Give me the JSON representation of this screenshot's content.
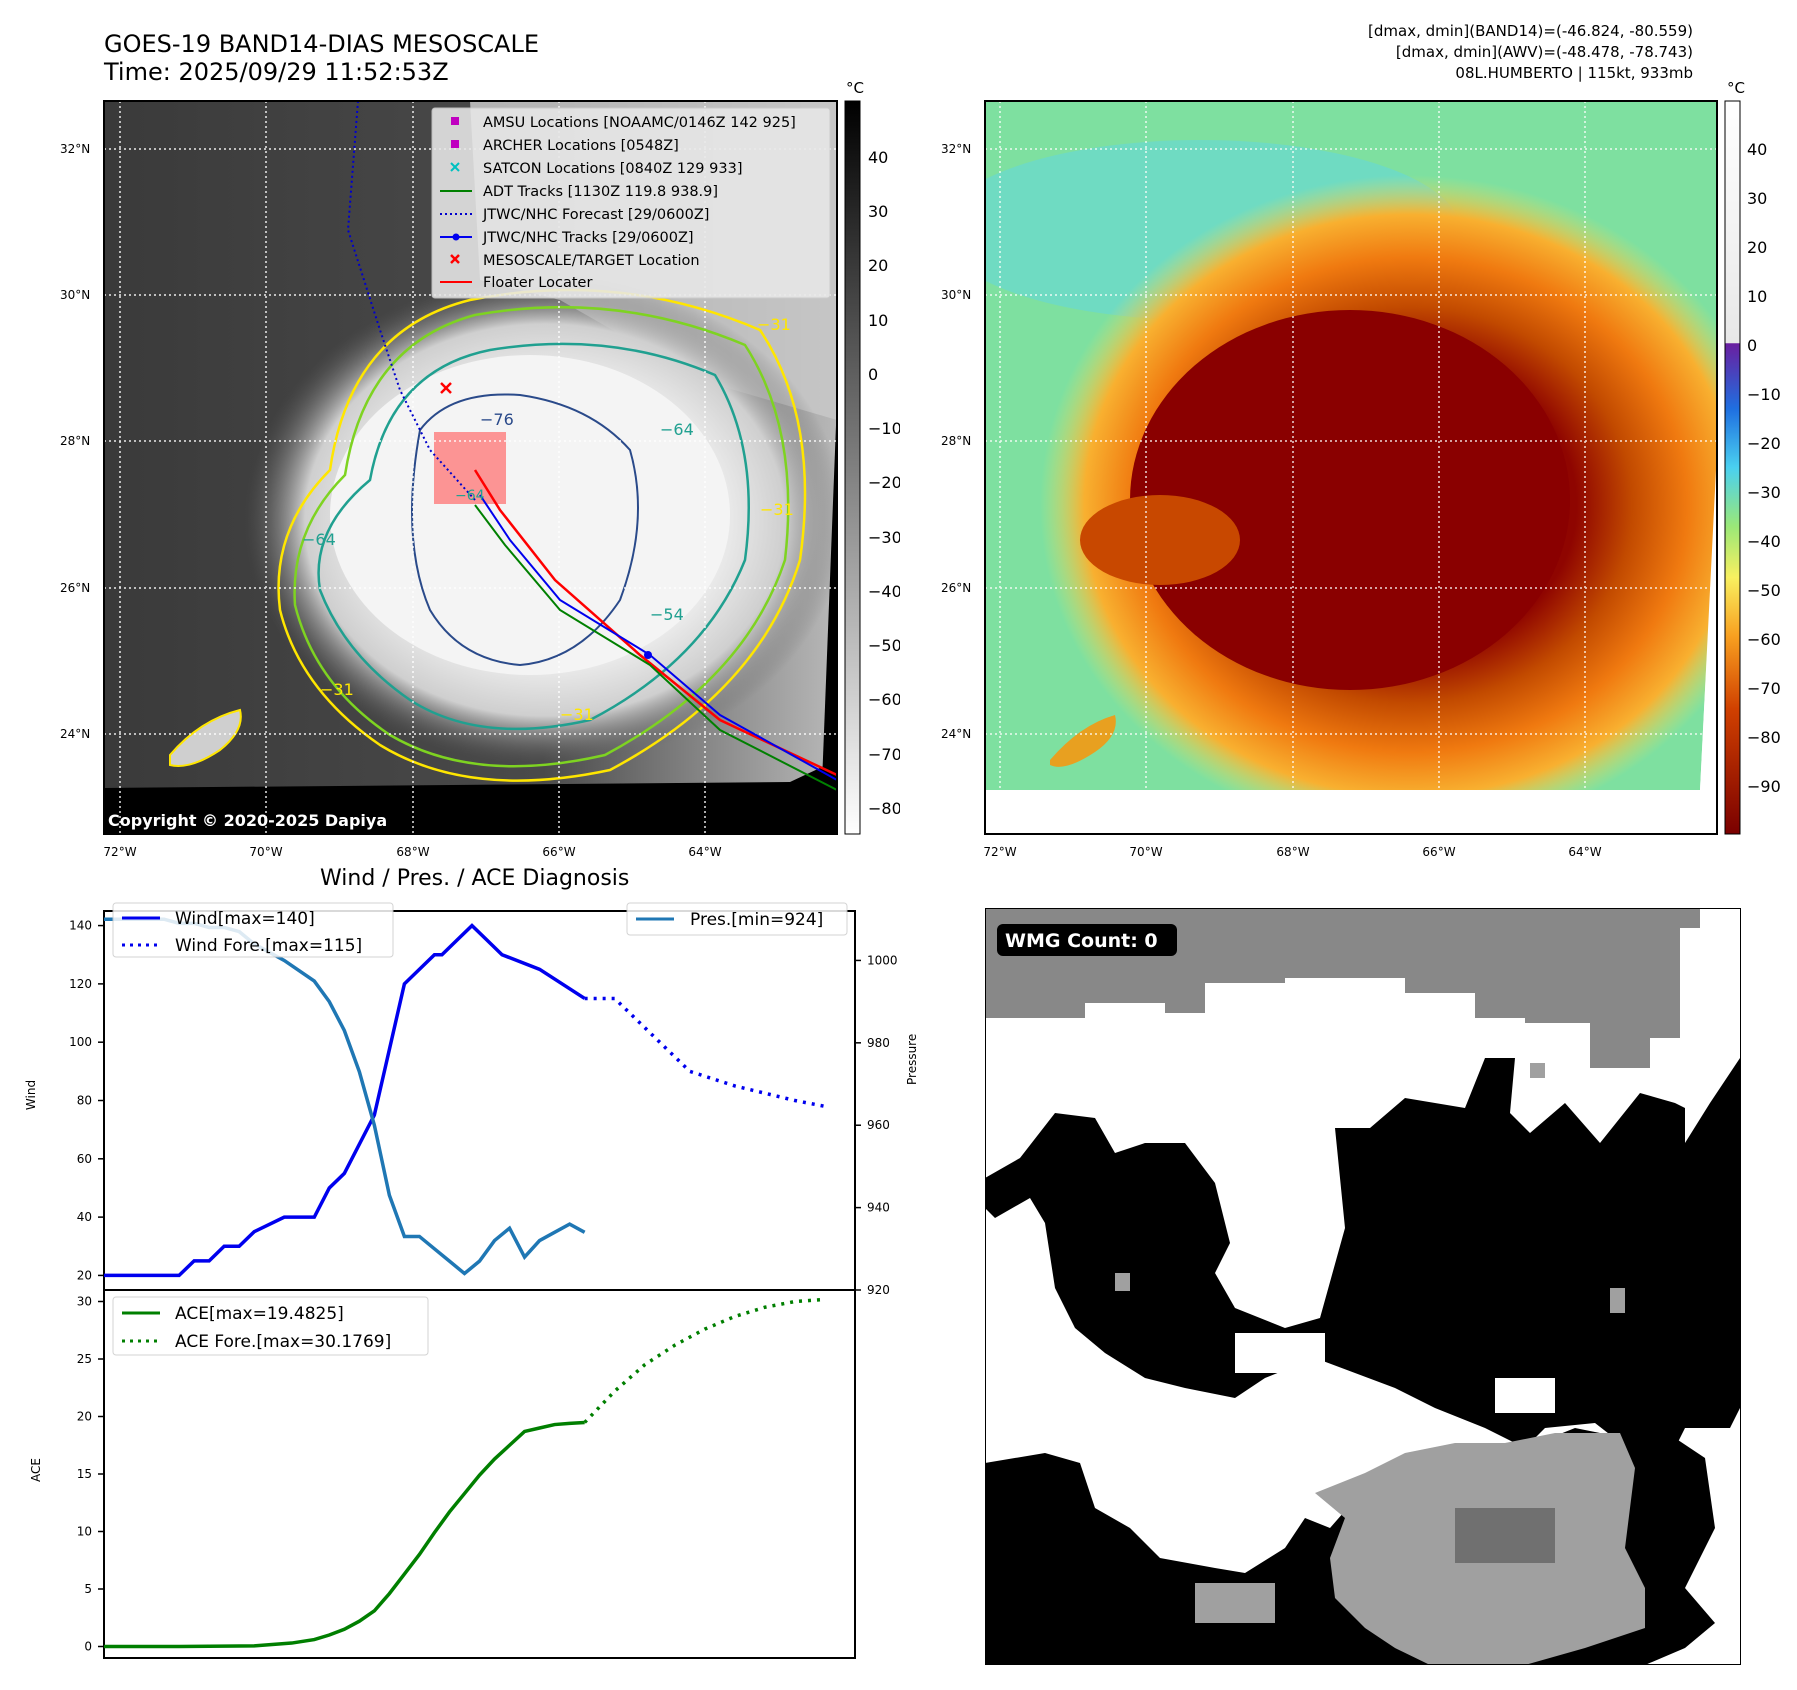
{
  "header": {
    "title": "GOES-19 BAND14-DIAS MESOSCALE",
    "time": "Time: 2025/09/29 11:52:53Z",
    "dmax_band14": "[dmax, dmin](BAND14)=(-46.824, -80.559)",
    "dmax_awv": "[dmax, dmin](AWV)=(-48.478, -78.743)",
    "storm": "08L.HUMBERTO | 115kt, 933mb"
  },
  "colors": {
    "wind": "#0000ee",
    "pressure": "#1f77b4",
    "ace": "#007f00",
    "track_red": "#ff0000",
    "forecast_blue": "#0000cc",
    "adt_green": "#008000"
  },
  "map_common": {
    "lat_labels": [
      "32°N",
      "30°N",
      "28°N",
      "26°N",
      "24°N"
    ],
    "lon_labels": [
      "72°W",
      "70°W",
      "68°W",
      "66°W",
      "64°W"
    ]
  },
  "ir_map": {
    "copyright": "Copyright © 2020-2025 Dapiya",
    "colorbar_unit": "°C",
    "colorbar_ticks": [
      "40",
      "30",
      "20",
      "10",
      "0",
      "−10",
      "−20",
      "−30",
      "−40",
      "−50",
      "−60",
      "−70",
      "−80"
    ],
    "contour_labels": [
      "−76",
      "−64",
      "−64",
      "−54",
      "−31",
      "−31",
      "−31",
      "−31",
      "−64"
    ],
    "legend": [
      {
        "label": "AMSU Locations [NOAAMC/0146Z 142 925]",
        "icon": "square-marker",
        "color": "#c000c0"
      },
      {
        "label": "ARCHER Locations [0548Z]",
        "icon": "square-marker",
        "color": "#c000c0"
      },
      {
        "label": "SATCON Locations [0840Z 129 933]",
        "icon": "x-marker",
        "color": "#00c0c0"
      },
      {
        "label": "ADT Tracks [1130Z 119.8 938.9]",
        "icon": "line",
        "color": "#008000"
      },
      {
        "label": "JTWC/NHC Forecast [29/0600Z]",
        "icon": "dotted-line",
        "color": "#0000cc"
      },
      {
        "label": "JTWC/NHC Tracks [29/0600Z]",
        "icon": "dot-line",
        "color": "#0000ee"
      },
      {
        "label": "MESOSCALE/TARGET Location",
        "icon": "x-marker",
        "color": "#ff0000"
      },
      {
        "label": "Floater Locater",
        "icon": "line",
        "color": "#ff0000"
      }
    ]
  },
  "awv_map": {
    "colorbar_unit": "°C",
    "colorbar_ticks": [
      "40",
      "30",
      "20",
      "10",
      "0",
      "−10",
      "−20",
      "−30",
      "−40",
      "−50",
      "−60",
      "−70",
      "−80",
      "−90"
    ]
  },
  "wmg": {
    "label": "WMG Count: 0"
  },
  "chart_data": [
    {
      "type": "line",
      "title": "Wind / Pres. / ACE Diagnosis",
      "ylabel": "Wind",
      "y2label": "Pressure",
      "ylim": [
        15,
        145
      ],
      "y2lim": [
        920,
        1012
      ],
      "yticks": [
        20,
        40,
        60,
        80,
        100,
        120,
        140
      ],
      "y2ticks": [
        920,
        940,
        960,
        980,
        1000
      ],
      "x": [
        0,
        1,
        2,
        3,
        4,
        5,
        6,
        7,
        8,
        9,
        10,
        11,
        12,
        13,
        14,
        15,
        16,
        17,
        18,
        19,
        20,
        21,
        22,
        23,
        24,
        25,
        26,
        27,
        28,
        29,
        30,
        31,
        32,
        33,
        34,
        35,
        36,
        37,
        38,
        39,
        40,
        41,
        42,
        43,
        44,
        45,
        46,
        47,
        48,
        49,
        50,
        51,
        52,
        53,
        54,
        55,
        56,
        57,
        58,
        59,
        60,
        61,
        62,
        63,
        64,
        65,
        66,
        67,
        68,
        69,
        70,
        71,
        72,
        73,
        74,
        75,
        76,
        77,
        78,
        79,
        80,
        81,
        82,
        83,
        84,
        85,
        86,
        87,
        88,
        89,
        90,
        91,
        92,
        93,
        94,
        95,
        96,
        97,
        98,
        99,
        100
      ],
      "series": [
        {
          "name": "Wind[max=140]",
          "style": "solid",
          "x": [
            0,
            10,
            12,
            14,
            16,
            18,
            20,
            24,
            28,
            30,
            32,
            36,
            40,
            44,
            45,
            47,
            49,
            51,
            53,
            58,
            64
          ],
          "values": [
            20,
            20,
            25,
            25,
            30,
            30,
            35,
            40,
            40,
            50,
            55,
            75,
            120,
            130,
            130,
            135,
            140,
            135,
            130,
            125,
            115
          ]
        },
        {
          "name": "Wind Fore.[max=115]",
          "style": "dotted",
          "x": [
            64,
            68,
            70,
            74,
            78,
            84,
            92,
            96
          ],
          "values": [
            115,
            115,
            110,
            100,
            90,
            85,
            80,
            78
          ]
        },
        {
          "name": "Pres.[min=924]",
          "style": "solid",
          "axis": "right",
          "x": [
            0,
            4,
            8,
            10,
            12,
            14,
            16,
            18,
            20,
            24,
            28,
            30,
            32,
            34,
            36,
            38,
            40,
            42,
            44,
            46,
            48,
            50,
            52,
            54,
            56,
            58,
            60,
            62,
            64
          ],
          "values": [
            1010,
            1010,
            1010,
            1009,
            1009,
            1008,
            1008,
            1007,
            1004,
            1000,
            995,
            990,
            983,
            973,
            960,
            943,
            933,
            933,
            930,
            927,
            924,
            927,
            932,
            935,
            928,
            932,
            934,
            936,
            934
          ]
        }
      ]
    },
    {
      "type": "line",
      "ylabel": "ACE",
      "ylim": [
        -1,
        31
      ],
      "yticks": [
        0,
        5,
        10,
        15,
        20,
        25,
        30
      ],
      "series": [
        {
          "name": "ACE[max=19.4825]",
          "style": "solid",
          "x": [
            0,
            10,
            20,
            25,
            28,
            30,
            32,
            34,
            36,
            38,
            40,
            42,
            44,
            46,
            48,
            50,
            52,
            54,
            56,
            58,
            60,
            62,
            64
          ],
          "values": [
            0,
            0,
            0.05,
            0.3,
            0.6,
            1.0,
            1.5,
            2.2,
            3.1,
            4.6,
            6.3,
            8.0,
            9.9,
            11.7,
            13.3,
            14.9,
            16.3,
            17.5,
            18.7,
            19.0,
            19.3,
            19.4,
            19.4825
          ]
        },
        {
          "name": "ACE Fore.[max=30.1769]",
          "style": "dotted",
          "x": [
            64,
            68,
            72,
            76,
            80,
            84,
            88,
            92,
            96
          ],
          "values": [
            19.4825,
            22.2,
            24.5,
            26.2,
            27.6,
            28.7,
            29.5,
            30.0,
            30.1769
          ]
        }
      ]
    }
  ]
}
